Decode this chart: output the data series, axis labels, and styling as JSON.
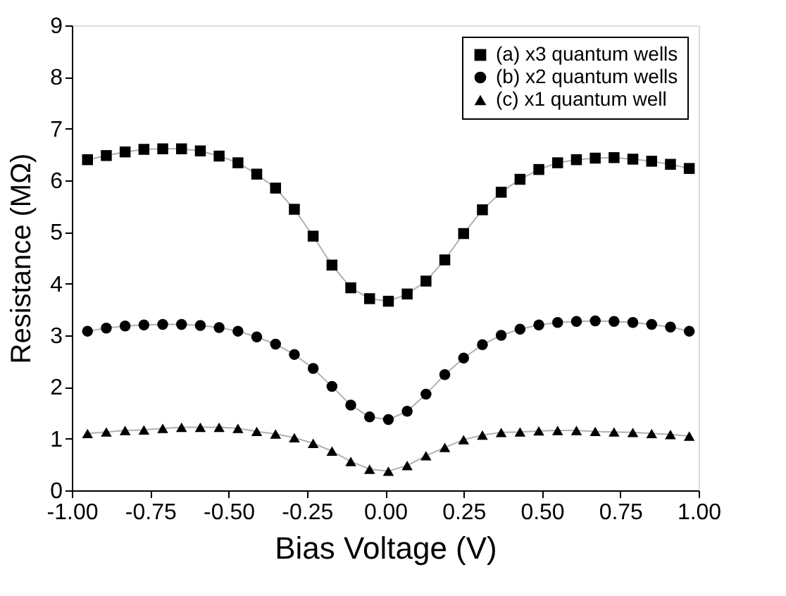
{
  "chart_data": {
    "type": "line",
    "xlabel": "Bias Voltage (V)",
    "ylabel": "Resistance (MΩ)",
    "x": [
      -0.95,
      -0.89,
      -0.83,
      -0.77,
      -0.71,
      -0.65,
      -0.59,
      -0.53,
      -0.47,
      -0.41,
      -0.35,
      -0.29,
      -0.23,
      -0.17,
      -0.11,
      -0.05,
      0.01,
      0.07,
      0.13,
      0.19,
      0.25,
      0.31,
      0.37,
      0.43,
      0.49,
      0.55,
      0.61,
      0.67,
      0.73,
      0.79,
      0.85,
      0.91,
      0.97
    ],
    "series": [
      {
        "name": "(a) x3 quantum wells",
        "color": "#000000",
        "marker": "square",
        "values": [
          6.4,
          6.48,
          6.55,
          6.6,
          6.61,
          6.61,
          6.57,
          6.47,
          6.34,
          6.12,
          5.85,
          5.44,
          4.92,
          4.36,
          3.92,
          3.71,
          3.66,
          3.8,
          4.05,
          4.46,
          4.97,
          5.43,
          5.77,
          6.02,
          6.21,
          6.34,
          6.4,
          6.43,
          6.44,
          6.41,
          6.37,
          6.31,
          6.23
        ]
      },
      {
        "name": "(b) x2 quantum wells",
        "color": "#000000",
        "marker": "circle",
        "values": [
          3.08,
          3.14,
          3.18,
          3.2,
          3.21,
          3.21,
          3.19,
          3.15,
          3.08,
          2.97,
          2.83,
          2.63,
          2.36,
          2.01,
          1.65,
          1.42,
          1.37,
          1.53,
          1.86,
          2.24,
          2.56,
          2.82,
          3.0,
          3.12,
          3.2,
          3.25,
          3.27,
          3.28,
          3.27,
          3.25,
          3.21,
          3.16,
          3.08
        ]
      },
      {
        "name": "(c) x1 quantum well",
        "color": "#000000",
        "marker": "triangle",
        "values": [
          1.1,
          1.13,
          1.16,
          1.17,
          1.2,
          1.22,
          1.22,
          1.22,
          1.2,
          1.14,
          1.09,
          1.02,
          0.91,
          0.76,
          0.56,
          0.41,
          0.37,
          0.48,
          0.67,
          0.83,
          0.98,
          1.07,
          1.12,
          1.13,
          1.15,
          1.16,
          1.16,
          1.14,
          1.13,
          1.12,
          1.1,
          1.08,
          1.05
        ]
      }
    ],
    "xlim": [
      -1.0,
      1.0
    ],
    "xticks": [
      {
        "value": -1.0,
        "label": "-1.00"
      },
      {
        "value": -0.75,
        "label": "-0.75"
      },
      {
        "value": -0.5,
        "label": "-0.50"
      },
      {
        "value": -0.25,
        "label": "-0.25"
      },
      {
        "value": 0.0,
        "label": "0.00"
      },
      {
        "value": 0.25,
        "label": "0.25"
      },
      {
        "value": 0.5,
        "label": "0.50"
      },
      {
        "value": 0.75,
        "label": "0.75"
      },
      {
        "value": 1.0,
        "label": "1.00"
      }
    ],
    "ylim": [
      0,
      9
    ],
    "yticks": [
      0,
      1,
      2,
      3,
      4,
      5,
      6,
      7,
      8,
      9
    ],
    "grid": false,
    "legend": "top right",
    "line_style": "solid"
  }
}
